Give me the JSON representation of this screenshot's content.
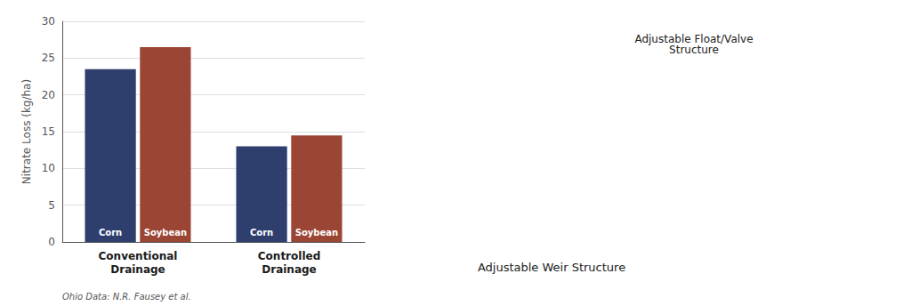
{
  "chart_data": {
    "type": "bar",
    "categories": [
      "Conventional\nDrainage",
      "Controlled\nDrainage"
    ],
    "series": [
      {
        "name": "Corn",
        "color": "#2e3f6e",
        "values": [
          23.5,
          13.0
        ]
      },
      {
        "name": "Soybean",
        "color": "#9b4535",
        "values": [
          26.5,
          14.5
        ]
      }
    ],
    "ylabel": "Nitrate Loss (kg/ha)",
    "ylim": [
      0,
      30
    ],
    "yticks": [
      0,
      5,
      10,
      15,
      20,
      25,
      30
    ],
    "grid": true,
    "annotations": [
      "Ohio Data: N.R. Fausey et al.",
      "Adjustable Weir Structure",
      "Adjustable Float/Valve\nStructure"
    ]
  }
}
